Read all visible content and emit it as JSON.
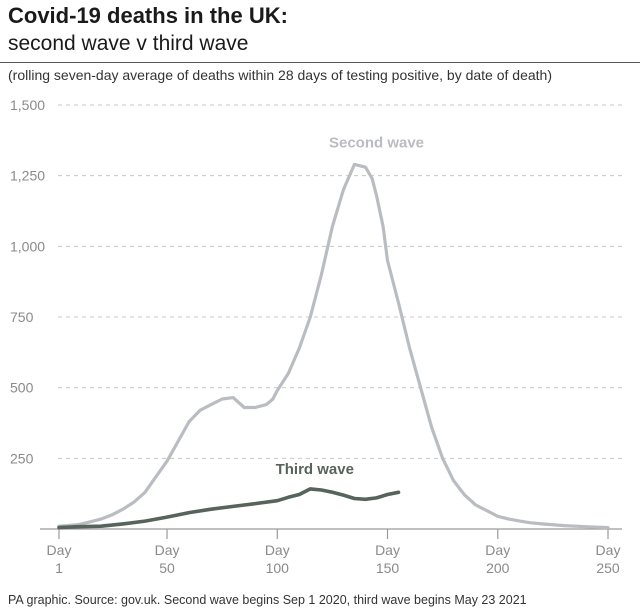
{
  "header": {
    "title": "Covid-19 deaths in the UK:",
    "subtitle": "second wave v third wave",
    "note": "(rolling seven-day average of deaths within 28 days of testing positive, by date of death)"
  },
  "footer": {
    "source": "PA graphic. Source: gov.uk. Second wave begins Sep 1 2020, third wave begins May 23 2021"
  },
  "colors": {
    "second_wave": "#b9bdc2",
    "third_wave": "#56645b",
    "grid": "#c8c8c8",
    "axis": "#9a9a9a",
    "tick_text": "#8a8a8a"
  },
  "chart_data": {
    "type": "line",
    "title": "Covid-19 deaths in the UK:",
    "subtitle": "second wave v third wave",
    "xlim": [
      1,
      250
    ],
    "ylim": [
      0,
      1500
    ],
    "yticks": [
      250,
      500,
      750,
      1000,
      1250,
      1500
    ],
    "ytick_labels": [
      "250",
      "500",
      "750",
      "1,000",
      "1,250",
      "1,500"
    ],
    "xticks": [
      {
        "value": 1,
        "line1": "Day",
        "line2": "1"
      },
      {
        "value": 50,
        "line1": "Day",
        "line2": "50"
      },
      {
        "value": 100,
        "line1": "Day",
        "line2": "100"
      },
      {
        "value": 150,
        "line1": "Day",
        "line2": "150"
      },
      {
        "value": 200,
        "line1": "Day",
        "line2": "200"
      },
      {
        "value": 250,
        "line1": "Day",
        "line2": "250"
      }
    ],
    "grid": true,
    "series": [
      {
        "name": "Second wave",
        "color": "#b9bdc2",
        "x": [
          1,
          5,
          10,
          15,
          20,
          25,
          30,
          35,
          40,
          45,
          50,
          55,
          60,
          65,
          70,
          75,
          80,
          85,
          90,
          95,
          98,
          100,
          105,
          110,
          115,
          120,
          125,
          130,
          135,
          140,
          143,
          145,
          148,
          150,
          155,
          160,
          165,
          170,
          175,
          180,
          185,
          190,
          195,
          200,
          205,
          210,
          215,
          220,
          230,
          240,
          250
        ],
        "y": [
          10,
          12,
          16,
          25,
          35,
          50,
          70,
          95,
          130,
          185,
          240,
          310,
          380,
          420,
          440,
          460,
          465,
          430,
          430,
          440,
          460,
          490,
          550,
          640,
          750,
          900,
          1070,
          1200,
          1290,
          1280,
          1240,
          1180,
          1070,
          950,
          800,
          640,
          500,
          360,
          250,
          170,
          120,
          85,
          65,
          45,
          35,
          28,
          22,
          18,
          12,
          8,
          5
        ]
      },
      {
        "name": "Third wave",
        "color": "#56645b",
        "x": [
          1,
          10,
          20,
          30,
          40,
          50,
          60,
          70,
          80,
          90,
          100,
          105,
          110,
          115,
          120,
          125,
          130,
          135,
          140,
          145,
          150,
          155
        ],
        "y": [
          5,
          8,
          10,
          18,
          28,
          42,
          58,
          70,
          80,
          90,
          100,
          112,
          122,
          142,
          138,
          130,
          120,
          108,
          105,
          110,
          122,
          130
        ]
      }
    ],
    "annotations": [
      {
        "text": "Second wave",
        "x": 145,
        "y": 1350,
        "color": "#b9bdc2"
      },
      {
        "text": "Third wave",
        "x": 117,
        "y": 195,
        "color": "#56645b"
      }
    ]
  }
}
